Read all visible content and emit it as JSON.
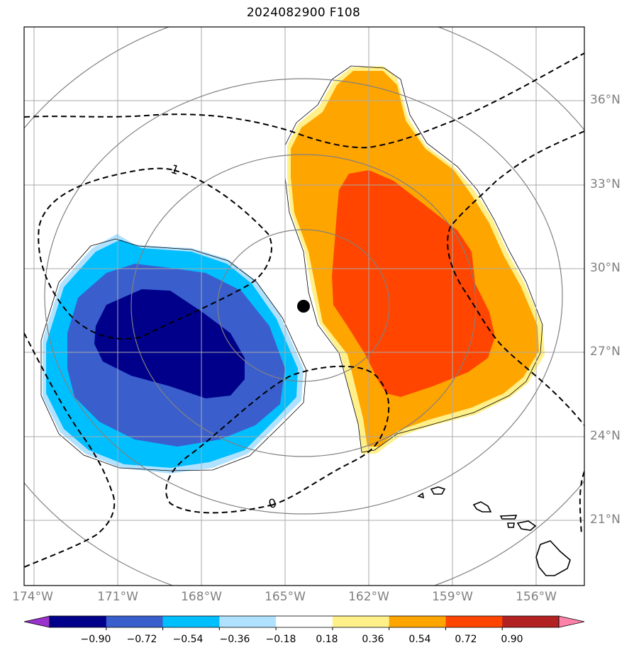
{
  "title": "2024082900 F108",
  "lat_labels": [
    "36°N",
    "33°N",
    "30°N",
    "27°N",
    "24°N",
    "21°N"
  ],
  "lon_labels": [
    "174°W",
    "171°W",
    "168°W",
    "165°W",
    "162°W",
    "159°W",
    "156°W"
  ],
  "contour_labels": [
    "1",
    "0"
  ],
  "storm_center": {
    "lat": 28.7,
    "lon": "164.3°W"
  },
  "colorbar": {
    "ticks": [
      "−0.90",
      "−0.72",
      "−0.54",
      "−0.36",
      "−0.18",
      "0.18",
      "0.36",
      "0.54",
      "0.72",
      "0.90"
    ],
    "colors": [
      "#9932cc",
      "#00008b",
      "#3a5fcd",
      "#00bfff",
      "#b0e2ff",
      "#ffffff",
      "#fff08a",
      "#ffa500",
      "#ff4500",
      "#b22222",
      "#ff82ab"
    ]
  }
}
